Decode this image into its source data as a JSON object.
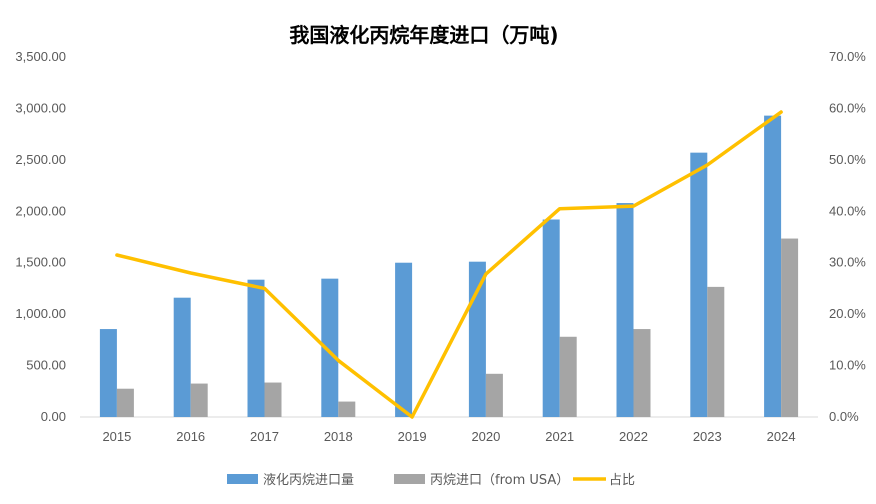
{
  "chart_data": {
    "type": "bar",
    "title": "我国液化丙烷年度进口（万吨)",
    "categories": [
      "2015",
      "2016",
      "2017",
      "2018",
      "2019",
      "2020",
      "2021",
      "2022",
      "2023",
      "2024"
    ],
    "series": [
      {
        "name": "液化丙烷进口量",
        "type": "bar",
        "axis": "left",
        "color": "#5B9BD5",
        "values": [
          855,
          1160,
          1335,
          1345,
          1500,
          1510,
          1920,
          2080,
          2570,
          2930
        ]
      },
      {
        "name": "丙烷进口（from USA）",
        "type": "bar",
        "axis": "left",
        "color": "#A5A5A5",
        "values": [
          275,
          325,
          335,
          150,
          0,
          420,
          780,
          855,
          1265,
          1735
        ]
      },
      {
        "name": "占比",
        "type": "line",
        "axis": "right",
        "color": "#FFC000",
        "values": [
          0.315,
          0.28,
          0.25,
          0.11,
          0.0,
          0.278,
          0.405,
          0.41,
          0.49,
          0.593
        ]
      }
    ],
    "y_left": {
      "min": 0,
      "max": 3500,
      "ticks": [
        "0.00",
        "500.00",
        "1,000.00",
        "1,500.00",
        "2,000.00",
        "2,500.00",
        "3,000.00",
        "3,500.00"
      ]
    },
    "y_right": {
      "min": 0,
      "max": 0.7,
      "ticks": [
        "0.0%",
        "10.0%",
        "20.0%",
        "30.0%",
        "40.0%",
        "50.0%",
        "60.0%",
        "70.0%"
      ]
    },
    "legend_position": "bottom",
    "grid": false
  }
}
